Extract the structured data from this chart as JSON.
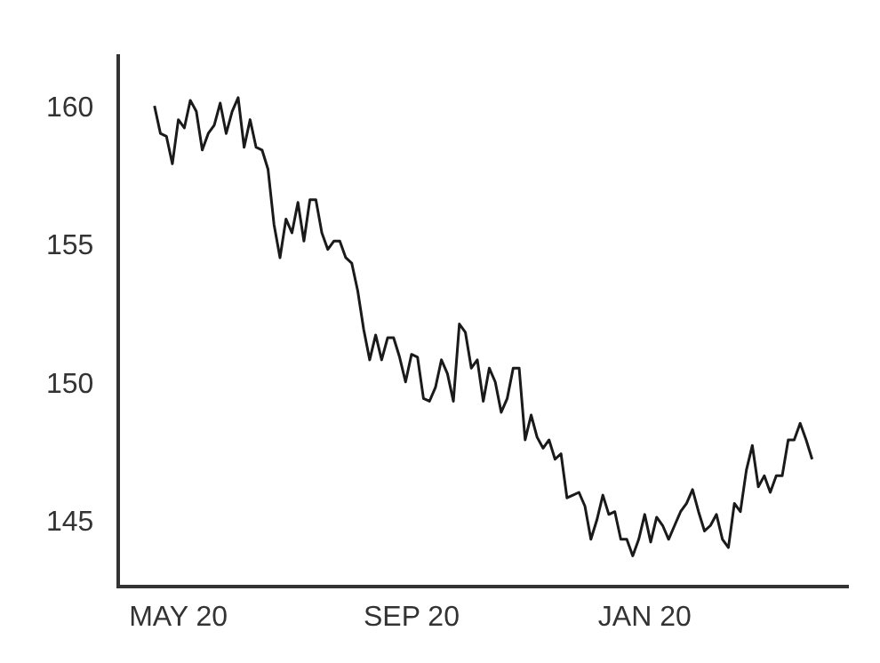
{
  "chart_data": {
    "type": "line",
    "categories": [
      null,
      null,
      null,
      null,
      null,
      null,
      null,
      null,
      null,
      null,
      "MAY 20",
      null,
      null,
      null,
      null,
      null,
      null,
      null,
      null,
      null,
      null,
      null,
      null,
      null,
      null,
      null,
      null,
      null,
      null,
      null,
      null,
      null,
      null,
      null,
      null,
      null,
      null,
      null,
      null,
      null,
      null,
      null,
      null,
      null,
      null,
      null,
      null,
      null,
      null,
      "SEP 20",
      null,
      null,
      null,
      null,
      null,
      null,
      null,
      null,
      null,
      null,
      null,
      null,
      null,
      null,
      null,
      null,
      null,
      null,
      null,
      null,
      null,
      null,
      null,
      null,
      null,
      null,
      null,
      null,
      null,
      null,
      null,
      null,
      null,
      null,
      null,
      null,
      null,
      null,
      "JAN 20",
      null,
      null,
      null,
      null,
      null,
      null,
      null,
      null,
      null,
      null,
      null,
      null,
      null,
      null,
      null,
      null,
      null,
      null,
      null,
      null,
      null,
      null,
      null,
      null,
      null,
      null,
      null,
      null,
      null,
      null,
      null,
      null,
      null,
      null
    ],
    "series": [
      {
        "color": "#1a1a1a",
        "values": [
          null,
          null,
          null,
          null,
          null,
          null,
          160.1,
          159.1,
          159.0,
          158.0,
          159.6,
          159.3,
          160.3,
          159.9,
          158.5,
          159.1,
          159.4,
          160.2,
          159.1,
          159.9,
          160.4,
          158.6,
          159.6,
          158.6,
          158.5,
          157.8,
          155.8,
          154.6,
          156.0,
          155.5,
          156.6,
          155.2,
          156.7,
          156.7,
          155.5,
          154.9,
          155.2,
          155.2,
          154.6,
          154.4,
          153.4,
          152.0,
          150.9,
          151.8,
          150.9,
          151.7,
          151.7,
          151.0,
          150.1,
          151.1,
          151.0,
          149.5,
          149.4,
          149.9,
          150.9,
          150.4,
          149.4,
          152.2,
          151.9,
          150.6,
          150.9,
          149.4,
          150.6,
          150.1,
          149.0,
          149.5,
          150.6,
          150.6,
          148.0,
          148.9,
          148.1,
          147.7,
          148.0,
          147.3,
          147.5,
          145.9,
          146.0,
          146.1,
          145.6,
          144.4,
          145.1,
          146.0,
          145.3,
          145.4,
          144.4,
          144.4,
          143.8,
          144.4,
          145.3,
          144.3,
          145.2,
          144.9,
          144.4,
          144.9,
          145.4,
          145.7,
          146.2,
          145.4,
          144.7,
          144.9,
          145.3,
          144.4,
          144.1,
          145.7,
          145.4,
          146.9,
          147.8,
          146.3,
          146.7,
          146.1,
          146.7,
          146.7,
          148.0,
          148.0,
          148.6,
          148.0,
          147.3,
          null,
          null,
          null,
          null,
          null,
          null
        ]
      }
    ],
    "ylim": [
      142.7,
      161.9
    ],
    "yticks": [
      145,
      150,
      155,
      160
    ],
    "grid": false,
    "legend": false,
    "marker": "none",
    "line_style": "solid"
  }
}
